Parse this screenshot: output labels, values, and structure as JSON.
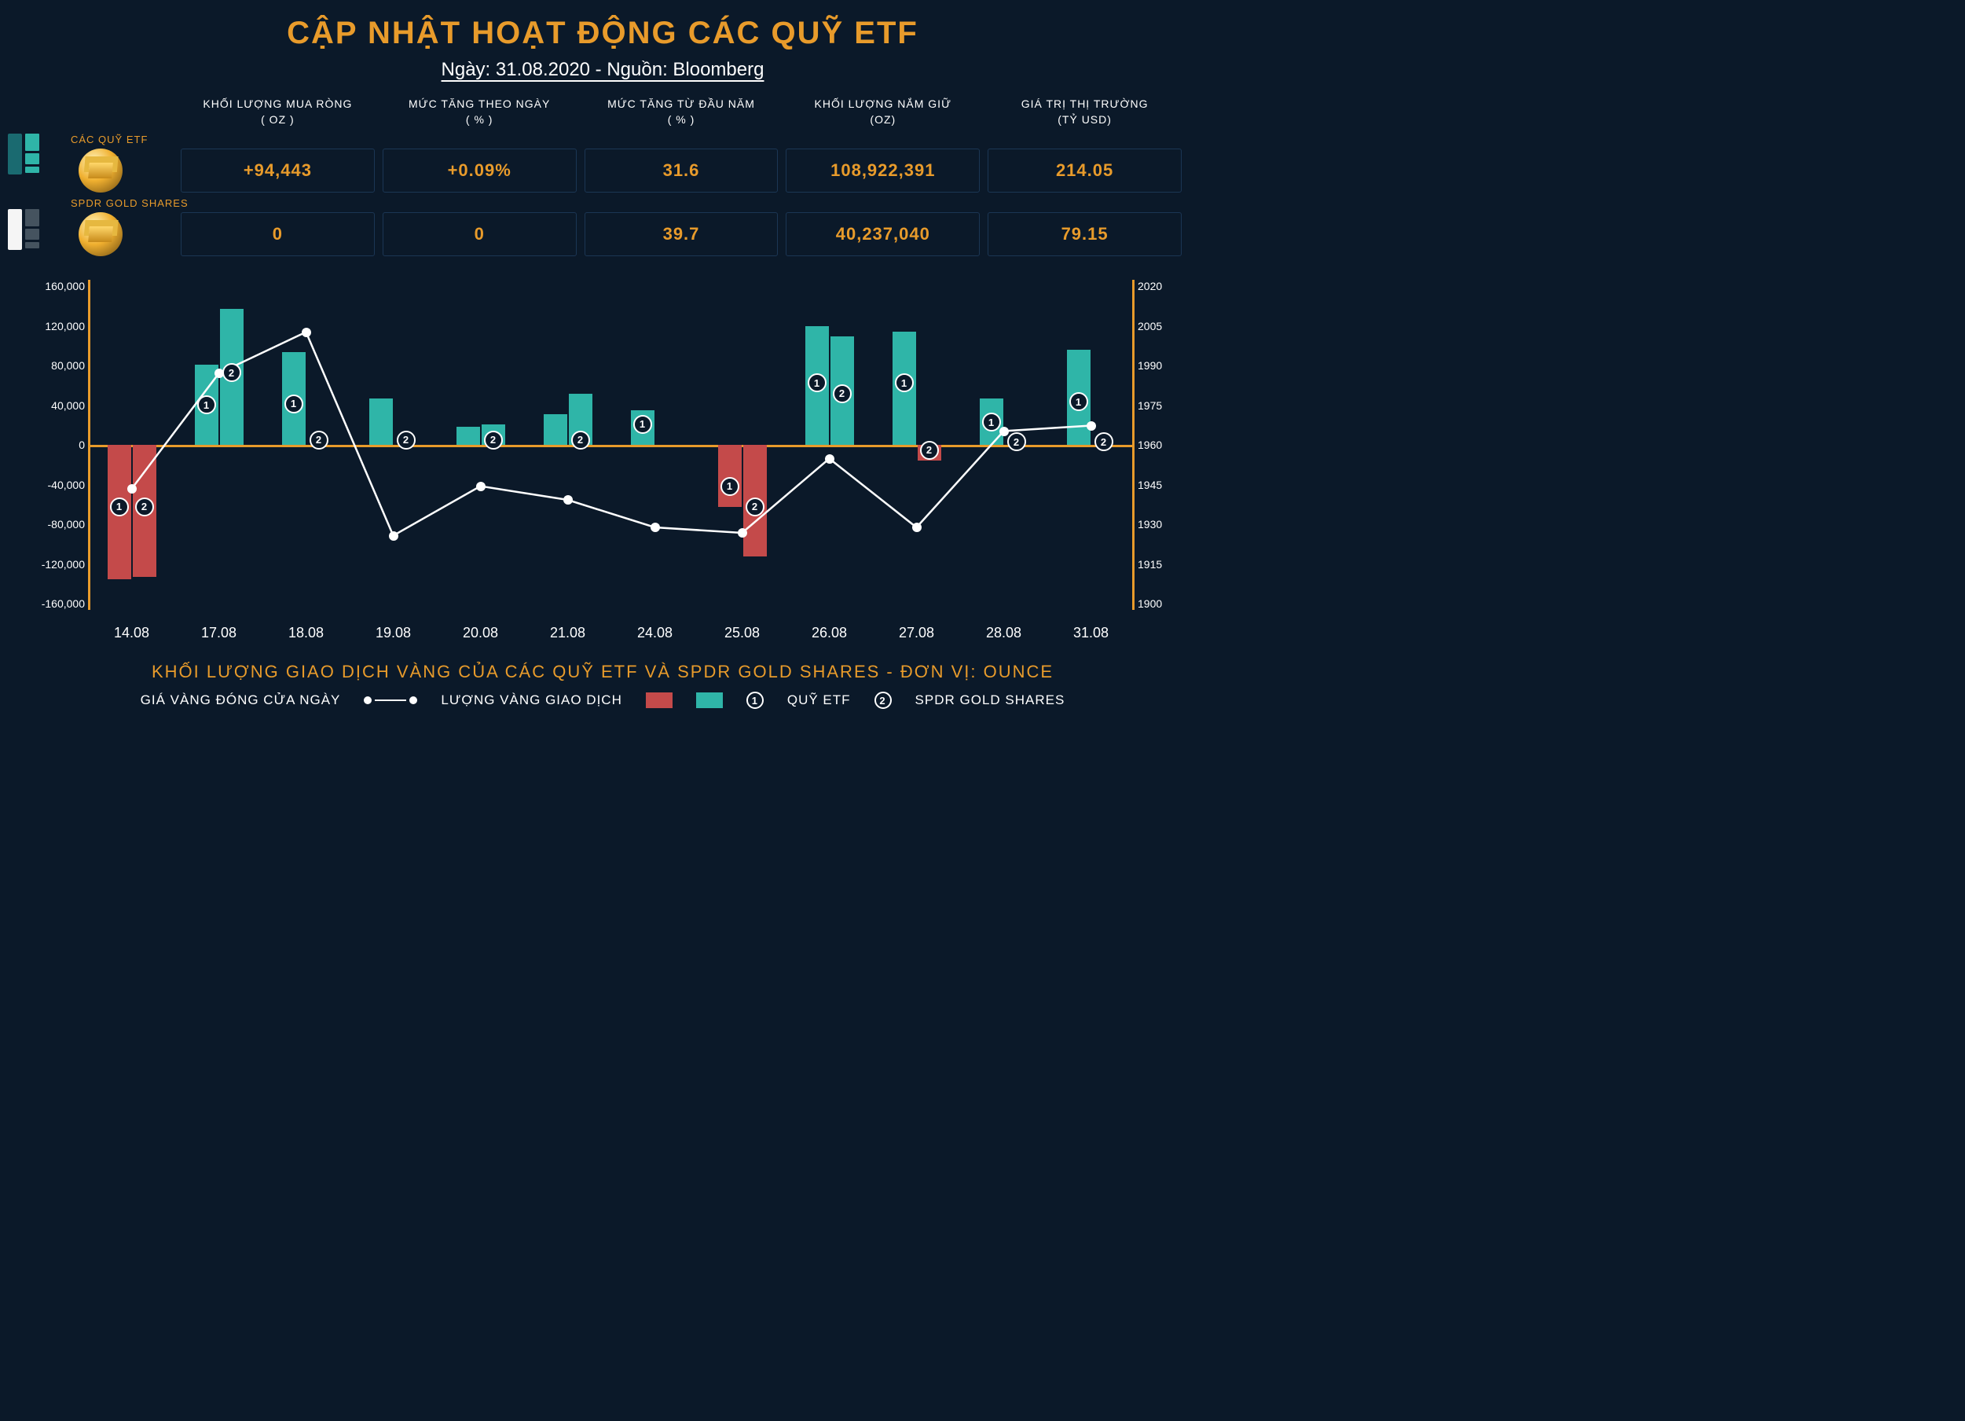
{
  "title": "CẬP NHẬT HOẠT ĐỘNG CÁC QUỸ ETF",
  "title_color": "#e89b2b",
  "subtitle": "Ngày: 31.08.2020 - Nguồn: Bloomberg",
  "columns": [
    "KHỐI LƯỢNG MUA RÒNG\n( OZ )",
    "MỨC TĂNG THEO NGÀY\n( % )",
    "MỨC TĂNG TỪ ĐẦU NĂM\n( % )",
    "KHỐI LƯỢNG NẮM GIỮ\n(OZ)",
    "GIÁ TRỊ THỊ TRƯỜNG\n(TỶ USD)"
  ],
  "rows": [
    {
      "label": "CÁC QUỸ ETF",
      "indicator": {
        "big_color": "#1a6a70",
        "small_color": "#2fb5a8"
      },
      "values": [
        "+94,443",
        "+0.09%",
        "31.6",
        "108,922,391",
        "214.05"
      ]
    },
    {
      "label": "SPDR GOLD SHARES",
      "indicator": {
        "big_color": "#f5f5f5",
        "small_color": "#45535f"
      },
      "values": [
        "0",
        "0",
        "39.7",
        "40,237,040",
        "79.15"
      ]
    }
  ],
  "value_color": "#e89b2b",
  "chart": {
    "type": "grouped-bar-line",
    "categories": [
      "14.08",
      "17.08",
      "18.08",
      "19.08",
      "20.08",
      "21.08",
      "24.08",
      "25.08",
      "26.08",
      "27.08",
      "28.08",
      "31.08"
    ],
    "y_left": {
      "min": -160000,
      "max": 160000,
      "step": 40000
    },
    "y_right": {
      "min": 1900,
      "max": 2020,
      "step": 15
    },
    "zero_color": "#e89b2b",
    "axis_color": "#e89b2b",
    "pos_color": "#2fb5a8",
    "neg_color": "#c44a4a",
    "series_bar1": [
      -130000,
      78000,
      90000,
      45000,
      18000,
      30000,
      34000,
      -60000,
      115000,
      110000,
      45000,
      92000
    ],
    "series_bar2": [
      -128000,
      132000,
      0,
      0,
      20000,
      50000,
      0,
      -108000,
      105000,
      -15000,
      0,
      0
    ],
    "line": [
      1944,
      1986,
      2001,
      1927,
      1945,
      1940,
      1930,
      1928,
      1955,
      1930,
      1965,
      1967
    ],
    "marker1_pos": [
      -60000,
      39000,
      40000,
      null,
      null,
      null,
      20000,
      -40000,
      60000,
      60000,
      22000,
      42000
    ],
    "marker2_pos": [
      -60000,
      70000,
      5000,
      5000,
      5000,
      5000,
      null,
      -60000,
      50000,
      -5000,
      3000,
      3000
    ]
  },
  "chart_caption": "KHỐI LƯỢNG GIAO DỊCH VÀNG CỦA CÁC QUỸ ETF VÀ SPDR GOLD SHARES - ĐƠN VỊ: OUNCE",
  "legend": {
    "line": "GIÁ VÀNG ĐÓNG CỬA NGÀY",
    "bars": "LƯỢNG VÀNG GIAO DỊCH",
    "m1": "QUỸ ETF",
    "m2": "SPDR GOLD SHARES"
  }
}
